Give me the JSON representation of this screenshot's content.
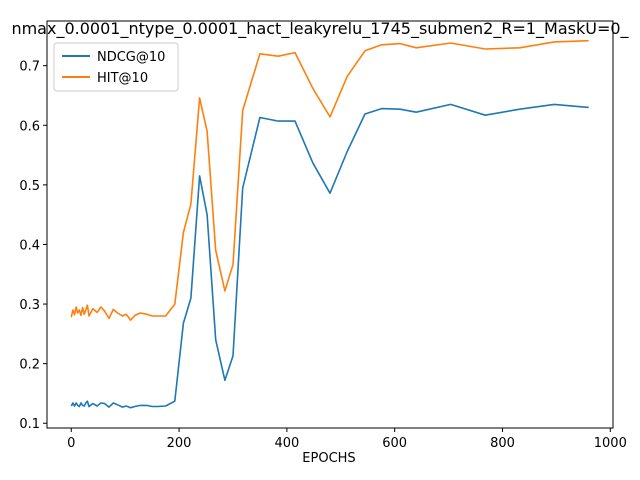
{
  "chart_data": {
    "type": "line",
    "title": "nmax_0.0001_ntype_0.0001_hact_leakyrelu_1745_submen2_R=1_MaskU=0_",
    "xlabel": "EPOCHS",
    "ylabel": "",
    "xlim": [
      -45,
      1005
    ],
    "ylim": [
      0.092,
      0.775
    ],
    "xticks": [
      0,
      200,
      400,
      600,
      800,
      1000
    ],
    "yticks": [
      0.1,
      0.2,
      0.3,
      0.4,
      0.5,
      0.6,
      0.7
    ],
    "grid": false,
    "legend_position": "top-left",
    "series": [
      {
        "name": "NDCG@10",
        "color": "#1f77b4",
        "x": [
          0,
          3,
          6,
          9,
          12,
          15,
          18,
          21,
          24,
          27,
          30,
          33,
          40,
          48,
          55,
          62,
          70,
          78,
          86,
          95,
          102,
          110,
          118,
          128,
          140,
          150,
          160,
          175,
          192,
          208,
          222,
          238,
          252,
          268,
          285,
          300,
          318,
          350,
          384,
          415,
          448,
          480,
          512,
          545,
          576,
          610,
          640,
          704,
          768,
          832,
          896,
          960
        ],
        "y": [
          0.129,
          0.134,
          0.129,
          0.134,
          0.13,
          0.128,
          0.134,
          0.13,
          0.129,
          0.134,
          0.137,
          0.128,
          0.133,
          0.129,
          0.134,
          0.133,
          0.127,
          0.134,
          0.131,
          0.127,
          0.129,
          0.126,
          0.128,
          0.13,
          0.13,
          0.128,
          0.128,
          0.129,
          0.137,
          0.268,
          0.31,
          0.515,
          0.45,
          0.24,
          0.172,
          0.213,
          0.495,
          0.613,
          0.607,
          0.607,
          0.537,
          0.486,
          0.556,
          0.619,
          0.628,
          0.627,
          0.622,
          0.635,
          0.617,
          0.627,
          0.635,
          0.63
        ]
      },
      {
        "name": "HIT@10",
        "color": "#ff7f0e",
        "x": [
          0,
          3,
          6,
          9,
          12,
          15,
          18,
          21,
          24,
          27,
          30,
          33,
          40,
          48,
          55,
          62,
          70,
          78,
          86,
          95,
          102,
          110,
          118,
          128,
          140,
          150,
          160,
          175,
          192,
          208,
          222,
          238,
          252,
          268,
          285,
          300,
          318,
          350,
          384,
          415,
          448,
          480,
          512,
          545,
          576,
          610,
          640,
          704,
          768,
          832,
          896,
          960
        ],
        "y": [
          0.278,
          0.29,
          0.282,
          0.295,
          0.285,
          0.29,
          0.281,
          0.294,
          0.283,
          0.29,
          0.298,
          0.28,
          0.292,
          0.286,
          0.295,
          0.288,
          0.276,
          0.291,
          0.285,
          0.28,
          0.283,
          0.273,
          0.281,
          0.285,
          0.283,
          0.28,
          0.28,
          0.28,
          0.3,
          0.42,
          0.468,
          0.646,
          0.59,
          0.39,
          0.322,
          0.366,
          0.625,
          0.72,
          0.716,
          0.722,
          0.662,
          0.614,
          0.682,
          0.725,
          0.735,
          0.737,
          0.73,
          0.738,
          0.728,
          0.73,
          0.74,
          0.742
        ]
      }
    ]
  }
}
